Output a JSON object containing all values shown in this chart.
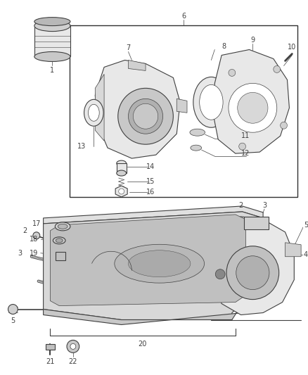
{
  "bg_color": "#ffffff",
  "line_color": "#404040",
  "text_color": "#404040",
  "figsize": [
    4.38,
    5.33
  ],
  "dpi": 100,
  "part_fill": "#e8e8e8",
  "part_fill2": "#d0d0d0",
  "white": "#ffffff"
}
